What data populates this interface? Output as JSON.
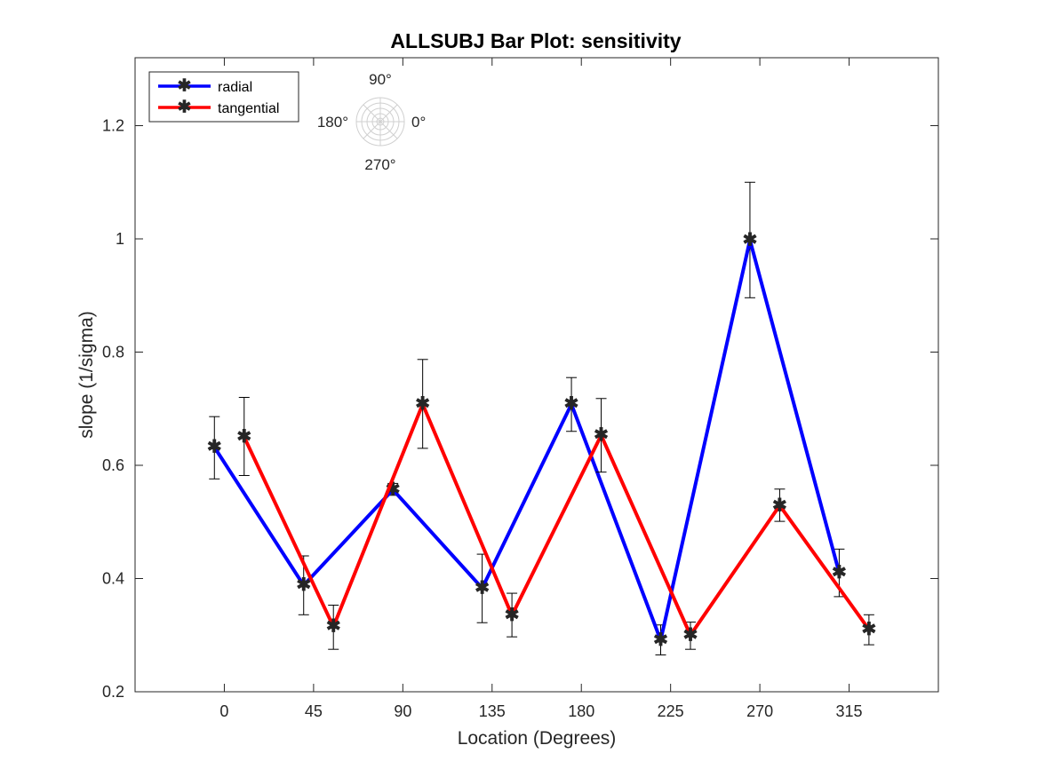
{
  "chart_data": {
    "type": "line",
    "title": "ALLSUBJ Bar Plot: sensitivity",
    "xlabel": "Location (Degrees)",
    "ylabel": "slope (1/sigma)",
    "categories": [
      "0",
      "45",
      "90",
      "135",
      "180",
      "225",
      "270",
      "315"
    ],
    "xlim": [
      -45,
      360
    ],
    "ylim": [
      0.2,
      1.32
    ],
    "yticks": [
      "0.2",
      "0.4",
      "0.6",
      "0.8",
      "1",
      "1.2"
    ],
    "ytick_values": [
      0.2,
      0.4,
      0.6,
      0.8,
      1.0,
      1.2
    ],
    "series": [
      {
        "name": "radial",
        "color": "#0000ff",
        "x": [
          -5,
          40,
          85,
          130,
          175,
          220,
          265,
          310
        ],
        "values": [
          0.632,
          0.388,
          0.557,
          0.383,
          0.708,
          0.291,
          0.998,
          0.41
        ],
        "err_low": [
          0.576,
          0.336,
          0.547,
          0.322,
          0.66,
          0.265,
          0.896,
          0.368
        ],
        "err_high": [
          0.686,
          0.44,
          0.568,
          0.443,
          0.755,
          0.318,
          1.1,
          0.452
        ]
      },
      {
        "name": "tangential",
        "color": "#ff0000",
        "x": [
          10,
          55,
          100,
          145,
          190,
          235,
          280,
          325
        ],
        "values": [
          0.65,
          0.315,
          0.708,
          0.335,
          0.653,
          0.3,
          0.529,
          0.31
        ],
        "err_low": [
          0.582,
          0.275,
          0.63,
          0.297,
          0.588,
          0.275,
          0.501,
          0.283
        ],
        "err_high": [
          0.72,
          0.353,
          0.787,
          0.374,
          0.718,
          0.323,
          0.558,
          0.336
        ]
      }
    ],
    "legend": {
      "placement": "top-left",
      "entries": [
        "radial",
        "tangential"
      ]
    },
    "inset": {
      "type": "polar-key",
      "labels": {
        "top": "90°",
        "left": "180°",
        "right": "0°",
        "bottom": "270°"
      }
    },
    "grid": false
  }
}
